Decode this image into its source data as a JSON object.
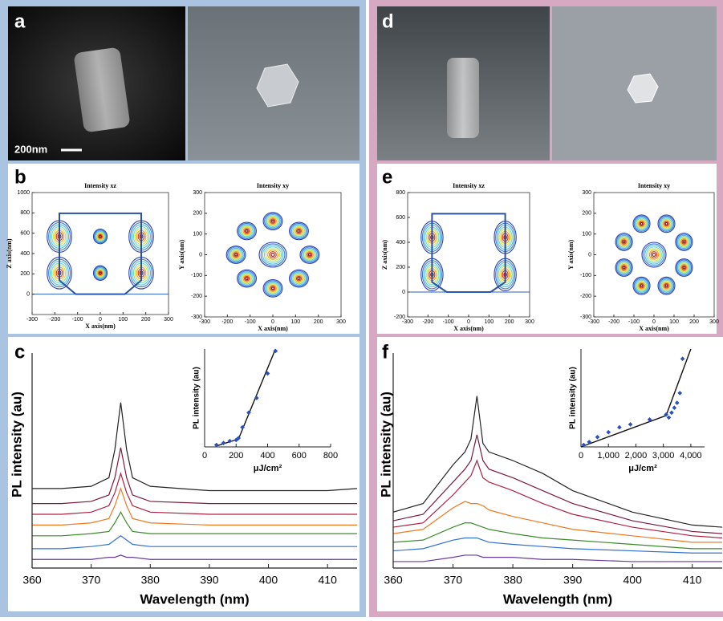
{
  "labels": [
    "a",
    "b",
    "c",
    "d",
    "e",
    "f"
  ],
  "scale_bar": "200nm",
  "contour_plots": [
    {
      "title": "Intensity xz",
      "xlabel": "X axis(nm)",
      "ylabel": "Z axis(nm)",
      "xlim": [
        -300,
        300
      ],
      "ylim": [
        -200,
        1000
      ],
      "xticks": [
        -300,
        -200,
        -100,
        0,
        100,
        200,
        300
      ],
      "yticks": [
        0,
        200,
        400,
        600,
        800,
        1000
      ]
    },
    {
      "title": "Intensity xy",
      "xlabel": "X axis(nm)",
      "ylabel": "Y axis(nm)",
      "xlim": [
        -300,
        300
      ],
      "ylim": [
        -300,
        300
      ],
      "xticks": [
        -300,
        -200,
        -100,
        0,
        100,
        200,
        300
      ],
      "yticks": [
        -300,
        -200,
        -100,
        0,
        100,
        200,
        300
      ]
    },
    {
      "title": "Intensity xz",
      "xlabel": "X axis(nm)",
      "ylabel": "Z axis(nm)",
      "xlim": [
        -300,
        300
      ],
      "ylim": [
        -200,
        800
      ],
      "xticks": [
        -300,
        -200,
        -100,
        0,
        100,
        200,
        300
      ],
      "yticks": [
        -200,
        0,
        200,
        400,
        600,
        800
      ]
    },
    {
      "title": "Intensity xy",
      "xlabel": "X axis(nm)",
      "ylabel": "Y axis(nm)",
      "xlim": [
        -300,
        300
      ],
      "ylim": [
        -300,
        300
      ],
      "xticks": [
        -300,
        -200,
        -100,
        0,
        100,
        200,
        300
      ],
      "yticks": [
        -300,
        -200,
        -100,
        0,
        100,
        200,
        300
      ]
    }
  ],
  "spectra": [
    {
      "type": "line",
      "xlabel": "Wavelength (nm)",
      "ylabel": "PL intensity (au)",
      "xlim": [
        360,
        415
      ],
      "ylim": [
        0,
        100
      ],
      "xticks": [
        360,
        370,
        380,
        390,
        400,
        410
      ],
      "x": [
        360,
        365,
        370,
        373,
        374,
        375,
        376,
        377,
        380,
        390,
        400,
        410,
        415
      ],
      "series": [
        {
          "color": "#222222",
          "values": [
            37,
            37,
            38,
            42,
            55,
            77,
            55,
            42,
            38,
            36,
            36,
            36,
            37
          ]
        },
        {
          "color": "#7a1a3a",
          "values": [
            30,
            30,
            31,
            34,
            42,
            56,
            42,
            34,
            31,
            30,
            30,
            30,
            30
          ]
        },
        {
          "color": "#b02040",
          "values": [
            25,
            25,
            26,
            29,
            35,
            44,
            35,
            29,
            26,
            25,
            25,
            25,
            25
          ]
        },
        {
          "color": "#f07820",
          "values": [
            20,
            20,
            21,
            23,
            29,
            37,
            29,
            23,
            21,
            20,
            20,
            20,
            20
          ]
        },
        {
          "color": "#3a8a2a",
          "values": [
            15,
            15,
            16,
            17,
            21,
            26,
            21,
            17,
            16,
            16,
            16,
            16,
            16
          ]
        },
        {
          "color": "#3070d0",
          "values": [
            9,
            9,
            10,
            11,
            13,
            15,
            13,
            11,
            10,
            10,
            10,
            10,
            10
          ]
        },
        {
          "color": "#6a3a9a",
          "values": [
            4,
            4,
            4,
            5,
            5,
            6,
            5,
            5,
            4,
            4,
            4,
            4,
            4
          ]
        }
      ],
      "inset": {
        "xlabel": "μJ/cm²",
        "ylabel": "PL intensity (au)",
        "xlim": [
          0,
          800
        ],
        "ylim": [
          0,
          100
        ],
        "xticks": [
          0,
          200,
          400,
          600,
          800
        ],
        "points_x": [
          75,
          120,
          160,
          200,
          215,
          240,
          280,
          330,
          400,
          450
        ],
        "points_y": [
          2,
          4,
          6,
          7,
          9,
          20,
          35,
          50,
          75,
          98
        ],
        "fit_x": [
          75,
          215,
          450
        ],
        "fit_y": [
          1,
          8,
          100
        ]
      }
    },
    {
      "type": "line",
      "xlabel": "Wavelength (nm)",
      "ylabel": "PL intensity (au)",
      "xlim": [
        360,
        415
      ],
      "ylim": [
        0,
        100
      ],
      "xticks": [
        360,
        370,
        380,
        390,
        400,
        410
      ],
      "x": [
        360,
        365,
        370,
        372,
        373,
        374,
        375,
        376,
        380,
        385,
        390,
        400,
        410,
        415
      ],
      "series": [
        {
          "color": "#222222",
          "values": [
            26,
            30,
            48,
            54,
            60,
            80,
            58,
            54,
            50,
            44,
            36,
            26,
            20,
            19
          ]
        },
        {
          "color": "#7a1a3a",
          "values": [
            22,
            25,
            40,
            46,
            50,
            62,
            50,
            46,
            42,
            36,
            30,
            22,
            17,
            16
          ]
        },
        {
          "color": "#b02040",
          "values": [
            19,
            21,
            34,
            40,
            43,
            50,
            42,
            40,
            36,
            30,
            25,
            19,
            15,
            14
          ]
        },
        {
          "color": "#f07820",
          "values": [
            16,
            18,
            28,
            31,
            30,
            30,
            29,
            27,
            24,
            21,
            18,
            15,
            12,
            12
          ]
        },
        {
          "color": "#3a8a2a",
          "values": [
            12,
            13,
            19,
            21,
            21,
            20,
            19,
            18,
            16,
            14,
            13,
            11,
            9,
            9
          ]
        },
        {
          "color": "#3070d0",
          "values": [
            8,
            9,
            13,
            14,
            14,
            14,
            13,
            12,
            11,
            10,
            9,
            8,
            7,
            7
          ]
        },
        {
          "color": "#6a3a9a",
          "values": [
            3,
            3,
            5,
            6,
            6,
            6,
            5,
            5,
            5,
            4,
            4,
            3,
            3,
            3
          ]
        }
      ],
      "inset": {
        "xlabel": "μJ/cm²",
        "ylabel": "PL intensity (au)",
        "xlim": [
          0,
          4500
        ],
        "ylim": [
          0,
          100
        ],
        "xticks": [
          0,
          {
            "value": 1000,
            "label": "1,000"
          },
          {
            "value": 2000,
            "label": "2,000"
          },
          {
            "value": 3000,
            "label": "3,000"
          },
          {
            "value": 4000,
            "label": "4,000"
          }
        ],
        "points_x": [
          100,
          300,
          600,
          1000,
          1400,
          1800,
          2500,
          3100,
          3200,
          3300,
          3400,
          3500,
          3600,
          3700
        ],
        "points_y": [
          2,
          5,
          10,
          15,
          20,
          23,
          28,
          33,
          30,
          35,
          40,
          45,
          55,
          90
        ],
        "fit_x": [
          0,
          3100,
          4000
        ],
        "fit_y": [
          0,
          32,
          100
        ]
      }
    }
  ]
}
